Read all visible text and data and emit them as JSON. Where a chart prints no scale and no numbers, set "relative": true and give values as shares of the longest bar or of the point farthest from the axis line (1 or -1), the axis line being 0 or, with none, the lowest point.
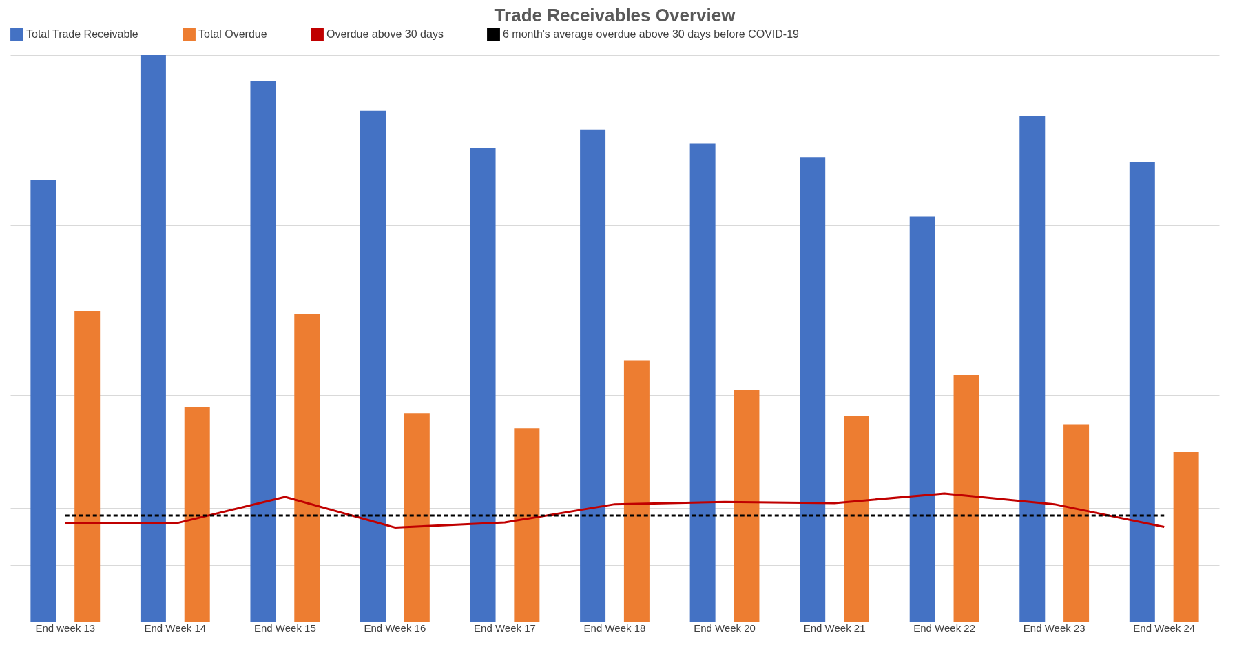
{
  "chart_data": {
    "type": "bar",
    "title": "Trade Receivables Overview",
    "relative": true,
    "grid": "y",
    "legend": "top",
    "categories": [
      "End week 13",
      "End Week 14",
      "End Week 15",
      "End Week 16",
      "End Week 17",
      "End Week 18",
      "End Week 20",
      "End Week 21",
      "End Week 22",
      "End Week 23",
      "End Week 24"
    ],
    "series": [
      {
        "name": "Total Trade Receivable",
        "color": "#4472c4",
        "values": [
          0.779,
          1,
          0.955,
          0.902,
          0.836,
          0.868,
          0.844,
          0.82,
          0.715,
          0.892,
          0.811
        ]
      },
      {
        "name": "Total Overdue",
        "color": "#ed7d31",
        "values": [
          0.548,
          0.379,
          0.543,
          0.368,
          0.341,
          0.461,
          0.409,
          0.362,
          0.435,
          0.348,
          0.3
        ]
      },
      {
        "name": "Overdue above 30 days",
        "type": "line",
        "color": "#c00000",
        "line_style": "solid",
        "values": [
          0.173,
          0.173,
          0.22,
          0.166,
          0.175,
          0.207,
          0.211,
          0.209,
          0.226,
          0.207,
          0.167
        ]
      },
      {
        "name": "6 month's average overdue above 30 days before COVID-19",
        "type": "line",
        "color": "#000000",
        "line_style": "dashed",
        "values": [
          0.187,
          0.187,
          0.187,
          0.187,
          0.187,
          0.187,
          0.187,
          0.187,
          0.187,
          0.187,
          0.187
        ]
      }
    ]
  }
}
